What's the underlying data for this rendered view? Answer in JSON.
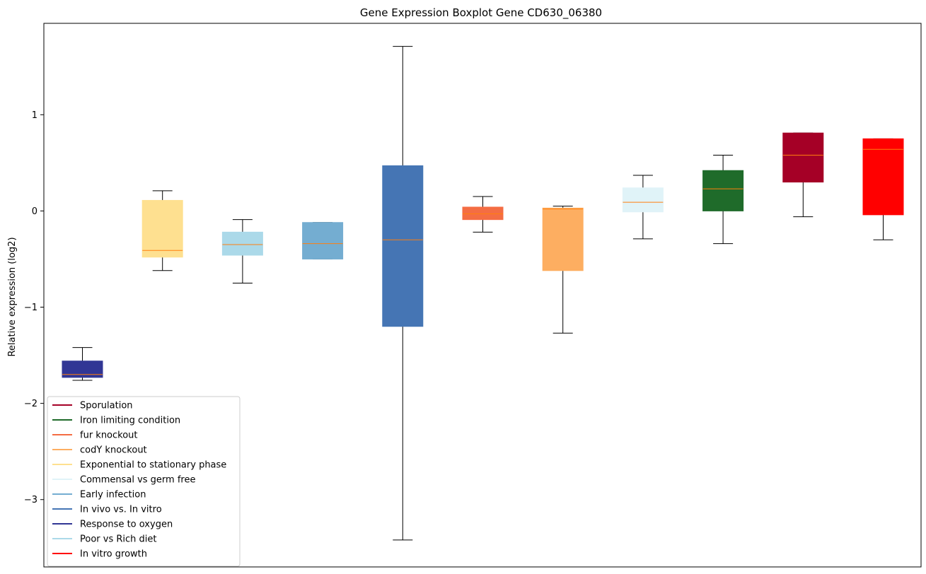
{
  "chart_data": {
    "type": "boxplot",
    "title": "Gene Expression Boxplot Gene CD630_06380",
    "xlabel": "",
    "ylabel": "Relative expression (log2)",
    "ylim": [
      -3.7,
      1.95
    ],
    "yticks": [
      1,
      0,
      -1,
      -2,
      -3
    ],
    "ytick_labels": [
      "1",
      "0",
      "−1",
      "−2",
      "−3"
    ],
    "grid": false,
    "legend_position": "lower-left",
    "median_color": "#ff7f0e",
    "whisker_color": "#000000",
    "series": [
      {
        "name": "Response to oxygen",
        "color": "#313695",
        "whislo": -1.76,
        "q1": -1.73,
        "median": -1.7,
        "q3": -1.56,
        "whishi": -1.42
      },
      {
        "name": "Exponential to stationary phase",
        "color": "#fee090",
        "whislo": -0.62,
        "q1": -0.48,
        "median": -0.41,
        "q3": 0.11,
        "whishi": 0.21
      },
      {
        "name": "Poor vs Rich diet",
        "color": "#abd9e9",
        "whislo": -0.75,
        "q1": -0.46,
        "median": -0.35,
        "q3": -0.22,
        "whishi": -0.09
      },
      {
        "name": "Early infection",
        "color": "#74add1",
        "whislo": -0.5,
        "q1": -0.5,
        "median": -0.34,
        "q3": -0.12,
        "whishi": -0.12
      },
      {
        "name": "In vivo vs. In vitro",
        "color": "#4575b4",
        "whislo": -3.42,
        "q1": -1.2,
        "median": -0.3,
        "q3": 0.47,
        "whishi": 1.71
      },
      {
        "name": "fur knockout",
        "color": "#f46d43",
        "whislo": -0.22,
        "q1": -0.09,
        "median": -0.03,
        "q3": 0.04,
        "whishi": 0.15
      },
      {
        "name": "codY knockout",
        "color": "#fdae61",
        "whislo": -1.27,
        "q1": -0.62,
        "median": 0.02,
        "q3": 0.03,
        "whishi": 0.05
      },
      {
        "name": "Commensal vs germ free",
        "color": "#e0f3f8",
        "whislo": -0.29,
        "q1": -0.01,
        "median": 0.09,
        "q3": 0.24,
        "whishi": 0.37
      },
      {
        "name": "Iron limiting condition",
        "color": "#1f6b2a",
        "whislo": -0.34,
        "q1": 0.0,
        "median": 0.23,
        "q3": 0.42,
        "whishi": 0.58
      },
      {
        "name": "Sporulation",
        "color": "#a50026",
        "whislo": -0.06,
        "q1": 0.3,
        "median": 0.58,
        "q3": 0.81,
        "whishi": 0.81
      },
      {
        "name": "In vitro growth",
        "color": "#ff0000",
        "whislo": -0.3,
        "q1": -0.04,
        "median": 0.64,
        "q3": 0.75,
        "whishi": 0.75
      }
    ],
    "legend": [
      {
        "label": "Sporulation",
        "color": "#a50026"
      },
      {
        "label": "Iron limiting condition",
        "color": "#1f6b2a"
      },
      {
        "label": "fur knockout",
        "color": "#f46d43"
      },
      {
        "label": "codY knockout",
        "color": "#fdae61"
      },
      {
        "label": "Exponential to stationary phase",
        "color": "#fee090"
      },
      {
        "label": "Commensal vs germ free",
        "color": "#e0f3f8"
      },
      {
        "label": "Early infection",
        "color": "#74add1"
      },
      {
        "label": "In vivo vs. In vitro",
        "color": "#4575b4"
      },
      {
        "label": "Response to oxygen",
        "color": "#313695"
      },
      {
        "label": "Poor vs Rich diet",
        "color": "#abd9e9"
      },
      {
        "label": "In vitro growth",
        "color": "#ff0000"
      }
    ]
  }
}
